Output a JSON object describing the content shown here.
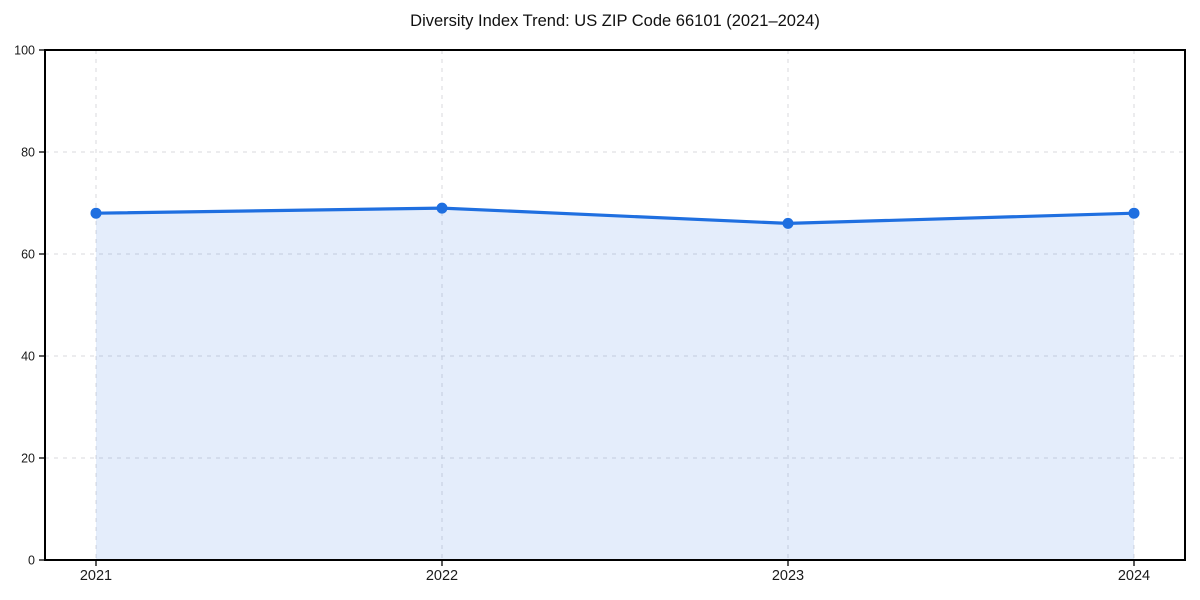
{
  "figure": {
    "background": "#ffffff"
  },
  "chart_data": {
    "type": "area",
    "title": "Diversity Index Trend: US ZIP Code 66101 (2021–2024)",
    "categories": [
      "2021",
      "2022",
      "2023",
      "2024"
    ],
    "series": [
      {
        "name": "Diversity Index",
        "values": [
          68,
          69,
          66,
          68
        ]
      }
    ],
    "xlabel": "",
    "ylabel": "",
    "ylim": [
      0,
      100
    ],
    "yticks": [
      0,
      20,
      40,
      60,
      80,
      100
    ],
    "grid": true,
    "grid_style": "dashed",
    "legend": "none",
    "colors": {
      "line": "#1f6fe0",
      "marker": "#1f6fe0",
      "fill": "rgba(31, 111, 224, 0.12)",
      "grid": "#d9d9dc",
      "spine": "#000000",
      "tick_label": "#1a1a1a",
      "title": "#111111",
      "background": "#ffffff"
    }
  }
}
